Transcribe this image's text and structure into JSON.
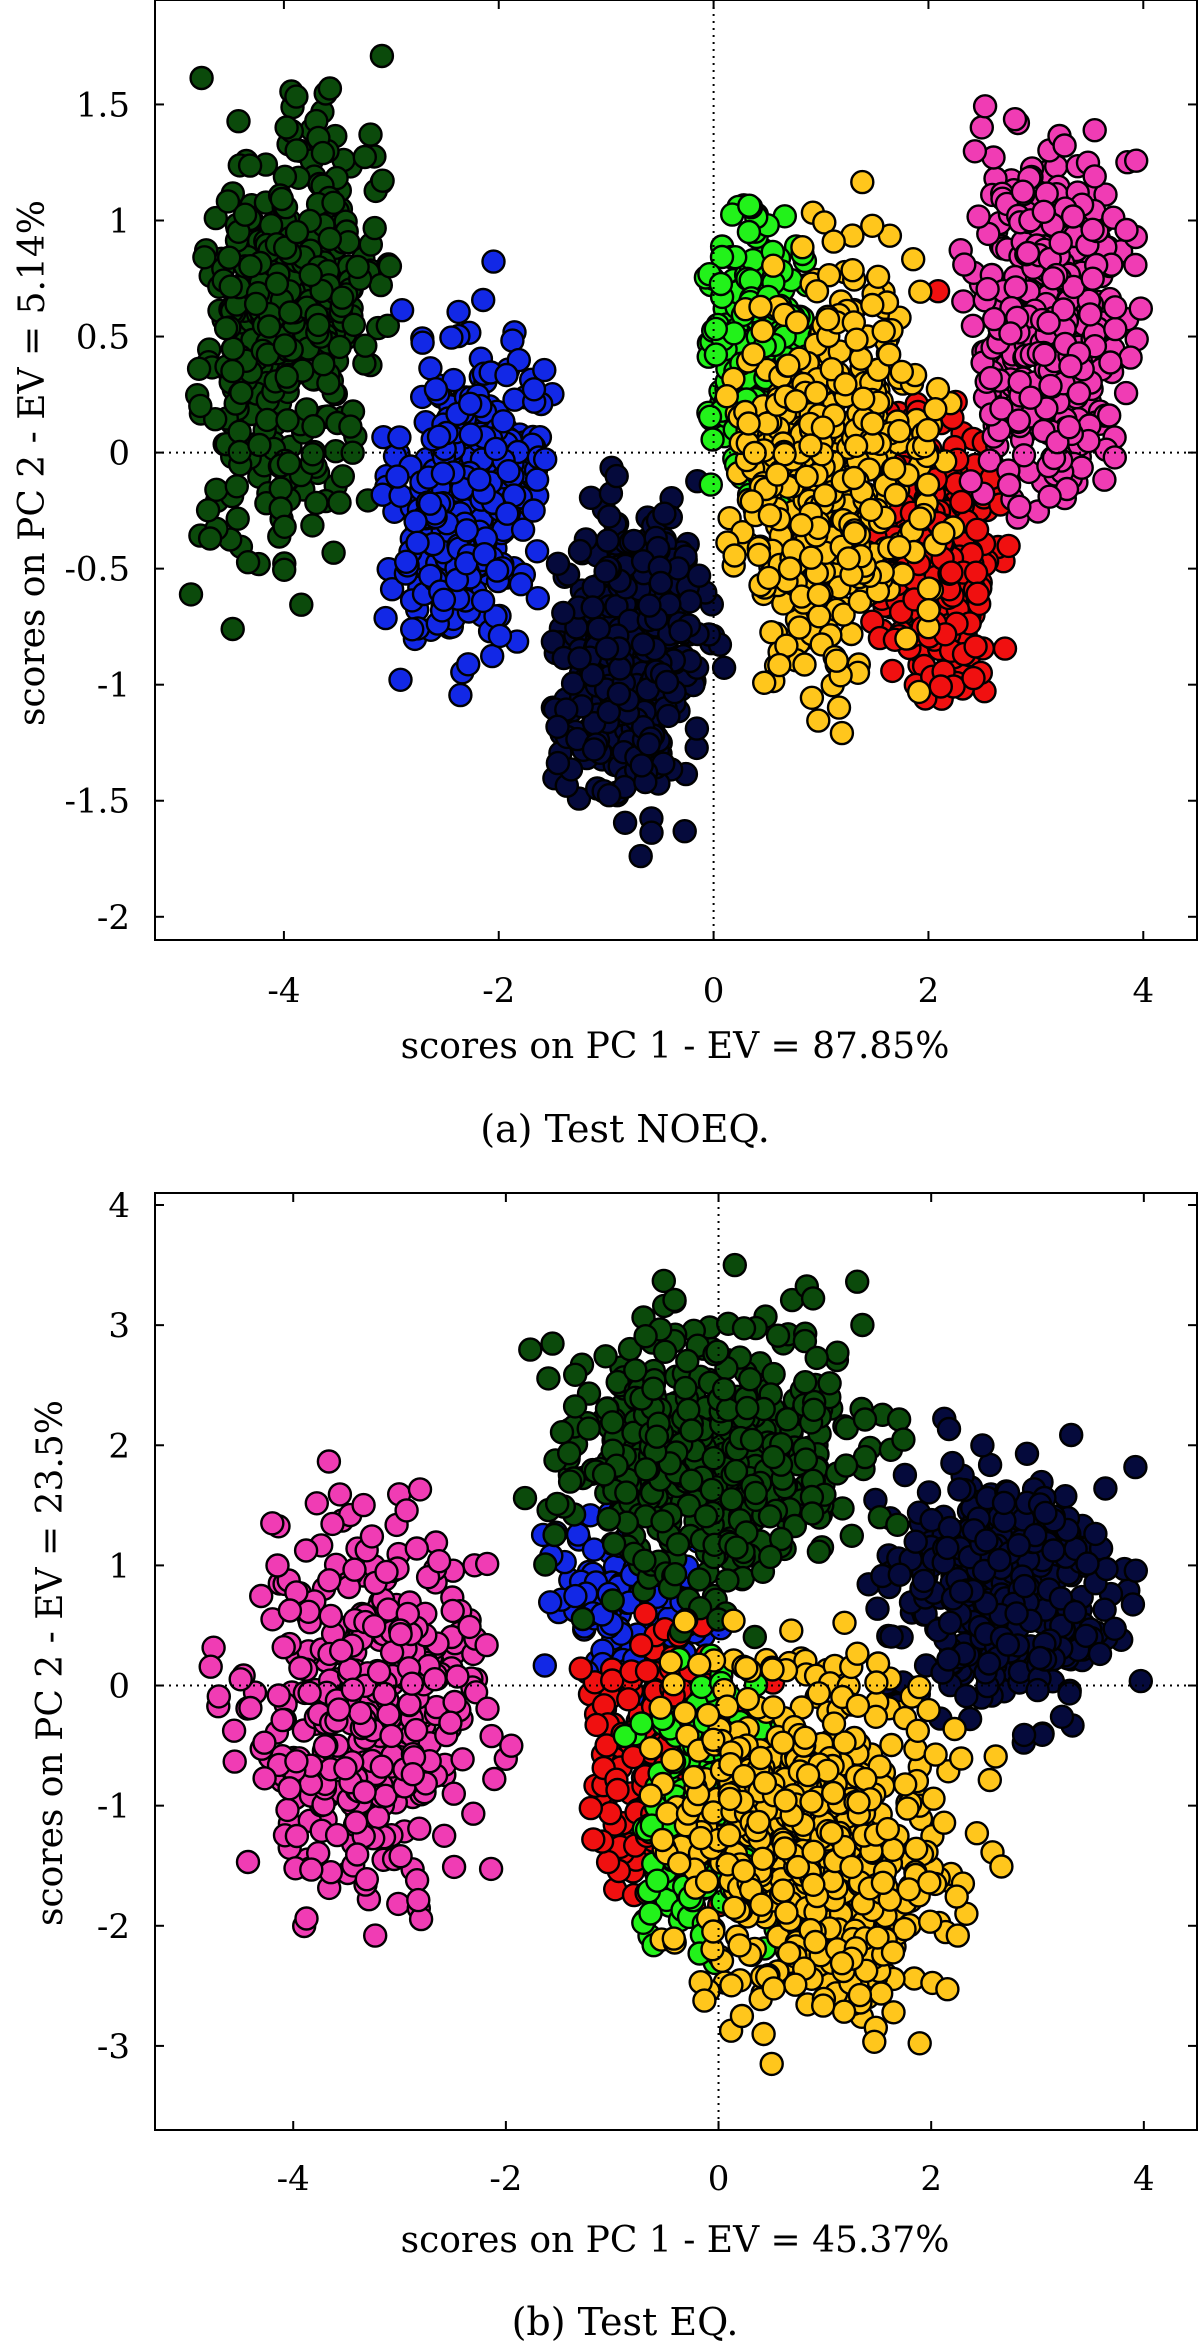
{
  "colors": {
    "dark_green": "#0b4a0b",
    "blue": "#1228e6",
    "navy": "#050a3c",
    "light_green": "#22f21a",
    "yellow": "#ffc61c",
    "red": "#f01010",
    "pink": "#f03cb4",
    "edge": "#000000"
  },
  "chart_data": [
    {
      "type": "scatter",
      "caption": "(a) Test NOEQ.",
      "xlabel": "scores on PC 1 - EV = 87.85%",
      "ylabel": "scores on PC 2 - EV = 5.14%",
      "xlim": [
        -5.2,
        4.5
      ],
      "ylim": [
        -2.1,
        1.95
      ],
      "xticks": [
        -4,
        -2,
        0,
        2,
        4
      ],
      "yticks": [
        -2,
        -1.5,
        -1,
        -0.5,
        0,
        0.5,
        1,
        1.5
      ],
      "xtick_labels": [
        "-4",
        "-2",
        "0",
        "2",
        "4"
      ],
      "ytick_labels": [
        "-2",
        "-1.5",
        "-1",
        "-0.5",
        "0",
        "0.5",
        "1",
        "1.5"
      ],
      "reference_lines": "dotted lines at x = 0 and y = 0",
      "grid": false,
      "legend": "none",
      "series": [
        {
          "color": "dark_green",
          "count": 420,
          "center": [
            -3.95,
            0.55
          ],
          "spread": [
            0.38,
            0.48
          ],
          "angle_deg": -45,
          "x_range": [
            -4.9,
            -3.0
          ],
          "y_range": [
            -0.85,
            1.8
          ],
          "order": 1
        },
        {
          "color": "blue",
          "count": 360,
          "center": [
            -2.3,
            -0.18
          ],
          "spread": [
            0.32,
            0.38
          ],
          "angle_deg": -50,
          "x_range": [
            -3.1,
            -1.5
          ],
          "y_range": [
            -1.05,
            0.85
          ],
          "order": 2
        },
        {
          "color": "navy",
          "count": 420,
          "center": [
            -0.75,
            -0.9
          ],
          "spread": [
            0.3,
            0.36
          ],
          "angle_deg": -60,
          "x_range": [
            -1.6,
            0.2
          ],
          "y_range": [
            -1.9,
            -0.05
          ],
          "order": 3
        },
        {
          "color": "red",
          "count": 330,
          "center": [
            2.05,
            -0.45
          ],
          "spread": [
            0.32,
            0.32
          ],
          "angle_deg": -55,
          "x_range": [
            1.4,
            2.8
          ],
          "y_range": [
            -1.1,
            0.7
          ],
          "order": 4
        },
        {
          "color": "light_green",
          "count": 260,
          "center": [
            0.4,
            0.45
          ],
          "spread": [
            0.28,
            0.28
          ],
          "angle_deg": -45,
          "x_range": [
            -0.1,
            1.3
          ],
          "y_range": [
            -0.25,
            1.15
          ],
          "order": 5
        },
        {
          "color": "yellow",
          "count": 520,
          "center": [
            1.05,
            -0.1
          ],
          "spread": [
            0.42,
            0.48
          ],
          "angle_deg": -55,
          "x_range": [
            0.1,
            2.3
          ],
          "y_range": [
            -1.3,
            1.35
          ],
          "order": 6
        },
        {
          "color": "pink",
          "count": 420,
          "center": [
            3.15,
            0.55
          ],
          "spread": [
            0.38,
            0.38
          ],
          "angle_deg": -50,
          "x_range": [
            2.3,
            4.05
          ],
          "y_range": [
            -0.3,
            1.5
          ],
          "order": 7
        }
      ]
    },
    {
      "type": "scatter",
      "caption": "(b) Test EQ.",
      "xlabel": "scores on PC 1 - EV = 45.37%",
      "ylabel": "scores on PC 2 - EV = 23.5%",
      "xlim": [
        -5.3,
        4.5
      ],
      "ylim": [
        -3.7,
        4.1
      ],
      "xticks": [
        -4,
        -2,
        0,
        2,
        4
      ],
      "yticks": [
        -3,
        -2,
        -1,
        0,
        1,
        2,
        3,
        4
      ],
      "xtick_labels": [
        "-4",
        "-2",
        "0",
        "2",
        "4"
      ],
      "ytick_labels": [
        "-3",
        "-2",
        "-1",
        "0",
        "1",
        "2",
        "3",
        "4"
      ],
      "reference_lines": "dotted lines at x = 0 and y = 0",
      "grid": false,
      "legend": "none",
      "series": [
        {
          "color": "blue",
          "count": 140,
          "center": [
            -0.9,
            0.7
          ],
          "spread": [
            0.42,
            0.35
          ],
          "angle_deg": 0,
          "x_range": [
            -1.7,
            0.3
          ],
          "y_range": [
            -1.0,
            1.5
          ],
          "order": 1
        },
        {
          "color": "pink",
          "count": 420,
          "center": [
            -3.3,
            -0.1
          ],
          "spread": [
            0.55,
            0.75
          ],
          "angle_deg": 0,
          "x_range": [
            -4.9,
            -1.8
          ],
          "y_range": [
            -2.4,
            2.0
          ],
          "order": 2
        },
        {
          "color": "navy",
          "count": 420,
          "center": [
            2.6,
            0.85
          ],
          "spread": [
            0.55,
            0.55
          ],
          "angle_deg": 0,
          "x_range": [
            1.4,
            4.0
          ],
          "y_range": [
            -1.0,
            2.4
          ],
          "order": 3
        },
        {
          "color": "red",
          "count": 220,
          "center": [
            -0.55,
            -0.6
          ],
          "spread": [
            0.35,
            0.55
          ],
          "angle_deg": 0,
          "x_range": [
            -1.3,
            0.6
          ],
          "y_range": [
            -2.1,
            0.6
          ],
          "order": 4
        },
        {
          "color": "light_green",
          "count": 220,
          "center": [
            -0.15,
            -1.1
          ],
          "spread": [
            0.3,
            0.65
          ],
          "angle_deg": 0,
          "x_range": [
            -0.9,
            0.6
          ],
          "y_range": [
            -3.2,
            0.4
          ],
          "order": 5
        },
        {
          "color": "dark_green",
          "count": 520,
          "center": [
            -0.15,
            1.9
          ],
          "spread": [
            0.75,
            0.55
          ],
          "angle_deg": 0,
          "x_range": [
            -1.9,
            1.8
          ],
          "y_range": [
            0.2,
            3.8
          ],
          "order": 6
        },
        {
          "color": "yellow",
          "count": 620,
          "center": [
            0.85,
            -1.25
          ],
          "spread": [
            0.6,
            0.75
          ],
          "angle_deg": 20,
          "x_range": [
            -0.7,
            2.7
          ],
          "y_range": [
            -3.3,
            1.1
          ],
          "order": 7
        }
      ]
    }
  ]
}
